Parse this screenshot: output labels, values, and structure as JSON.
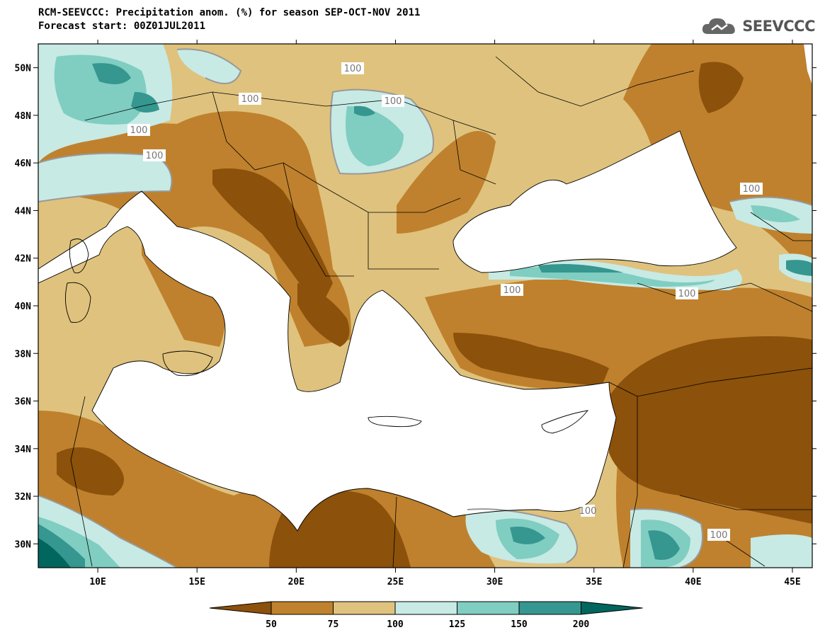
{
  "title": "RCM-SEEVCCC: Precipitation anom. (%) for season SEP-OCT-NOV 2011",
  "subtitle": "Forecast start: 00Z01JUL2011",
  "logo_text": "SEEVCCC",
  "logo_icon": "cloud-icon",
  "map": {
    "lon_range": [
      7,
      46
    ],
    "lat_range": [
      29,
      51
    ],
    "lat_ticks": [
      "30N",
      "32N",
      "34N",
      "36N",
      "38N",
      "40N",
      "42N",
      "44N",
      "46N",
      "48N",
      "50N"
    ],
    "lon_ticks": [
      "10E",
      "15E",
      "20E",
      "25E",
      "30E",
      "35E",
      "40E",
      "45E"
    ],
    "contour_labels": [
      "100",
      "100",
      "100",
      "100",
      "100",
      "100",
      "100",
      "100",
      "100",
      "100"
    ]
  },
  "legend": {
    "levels": [
      "50",
      "75",
      "100",
      "125",
      "150",
      "200"
    ],
    "colors": [
      "#8c510a",
      "#bf812d",
      "#dfc27d",
      "#c7eae5",
      "#80cdc1",
      "#35978f",
      "#01665e"
    ]
  }
}
